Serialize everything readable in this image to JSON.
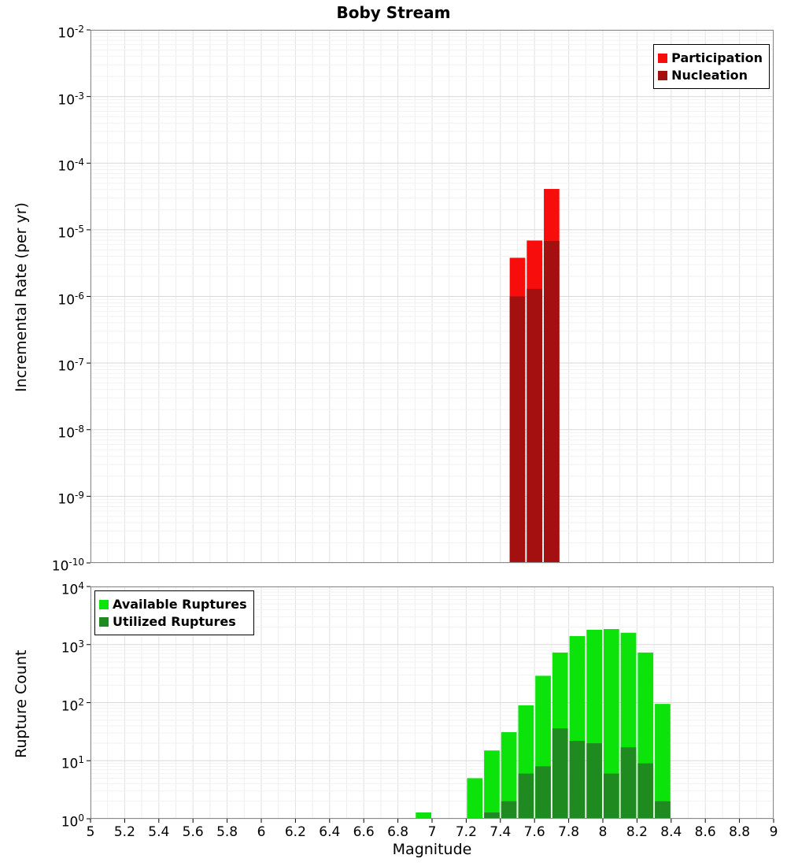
{
  "title": "Boby Stream",
  "xlabel": "Magnitude",
  "chart_data": [
    {
      "type": "bar",
      "title": "Boby Stream",
      "ylabel": "Incremental Rate (per yr)",
      "yscale": "log",
      "ylim": [
        1e-10,
        0.01
      ],
      "xlim": [
        5,
        9
      ],
      "grid": true,
      "bin_width": 0.1,
      "legend_position": "top-right",
      "x_tick_step": 0.2,
      "x_tick_labels_visible": false,
      "series": [
        {
          "name": "Participation",
          "color": "#f80d0d",
          "x": [
            7.5,
            7.6,
            7.7
          ],
          "values": [
            3.8e-06,
            6.9e-06,
            4.1e-05
          ]
        },
        {
          "name": "Nucleation",
          "color": "#a41010",
          "x": [
            7.5,
            7.6,
            7.7
          ],
          "values": [
            1e-06,
            1.3e-06,
            6.8e-06
          ]
        }
      ]
    },
    {
      "type": "bar",
      "title": "",
      "ylabel": "Rupture Count",
      "yscale": "log",
      "ylim": [
        1,
        10000
      ],
      "xlim": [
        5,
        9
      ],
      "grid": true,
      "bin_width": 0.1,
      "legend_position": "top-left",
      "x_tick_step": 0.2,
      "x_tick_labels_visible": true,
      "x_tick_labels": [
        "5",
        "5.2",
        "5.4",
        "5.6",
        "5.8",
        "6",
        "6.2",
        "6.4",
        "6.6",
        "6.8",
        "7",
        "7.2",
        "7.4",
        "7.6",
        "7.8",
        "8",
        "8.2",
        "8.4",
        "8.6",
        "8.8",
        "9"
      ],
      "series": [
        {
          "name": "Available Ruptures",
          "color": "#0be30b",
          "x": [
            6.95,
            7.25,
            7.35,
            7.45,
            7.55,
            7.65,
            7.75,
            7.85,
            7.95,
            8.05,
            8.15,
            8.25,
            8.35
          ],
          "values": [
            1,
            5,
            15,
            31,
            90,
            290,
            730,
            1400,
            1800,
            1850,
            1600,
            730,
            95
          ]
        },
        {
          "name": "Utilized Ruptures",
          "color": "#1f8a1f",
          "x": [
            7.35,
            7.45,
            7.55,
            7.65,
            7.75,
            7.85,
            7.95,
            8.05,
            8.15,
            8.25,
            8.35
          ],
          "values": [
            1,
            2,
            6,
            8,
            36,
            22,
            20,
            6,
            17,
            9,
            2
          ]
        }
      ]
    }
  ]
}
